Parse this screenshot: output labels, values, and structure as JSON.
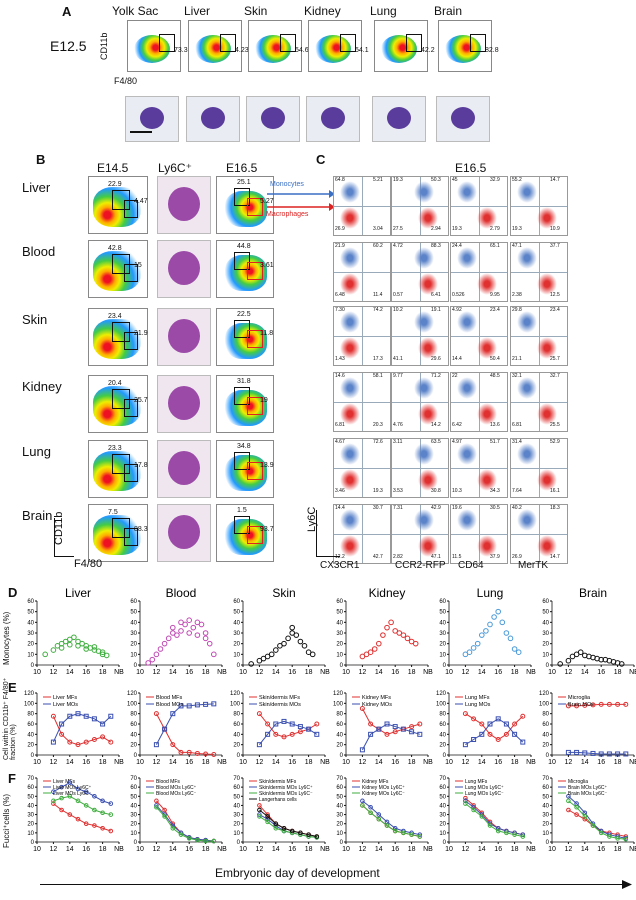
{
  "panelA": {
    "label": "A",
    "day": "E12.5",
    "tissues": [
      "Yolk Sac",
      "Liver",
      "Skin",
      "Kidney",
      "Lung",
      "Brain"
    ],
    "gate_values": [
      "73.3",
      "4.23",
      "54.6",
      "54.1",
      "42.2",
      "82.8"
    ],
    "y_axis": "CD11b",
    "x_axis": "F4/80"
  },
  "panelB": {
    "label": "B",
    "col_e145": "E14.5",
    "col_ly6c": "Ly6C⁺",
    "col_e165": "E16.5",
    "rows": [
      {
        "tissue": "Liver",
        "e145": [
          "22.9",
          "4.47"
        ],
        "e165": [
          "25.1",
          "5.27"
        ]
      },
      {
        "tissue": "Blood",
        "e145": [
          "42.8",
          "15"
        ],
        "e165": [
          "44.8",
          "3.61"
        ]
      },
      {
        "tissue": "Skin",
        "e145": [
          "23.4",
          "21.9"
        ],
        "e165": [
          "22.5",
          "11.8"
        ]
      },
      {
        "tissue": "Kidney",
        "e145": [
          "20.4",
          "25.7"
        ],
        "e165": [
          "31.8",
          "19"
        ]
      },
      {
        "tissue": "Lung",
        "e145": [
          "23.3",
          "17.8"
        ],
        "e165": [
          "34.8",
          "13.9"
        ]
      },
      {
        "tissue": "Brain",
        "e145": [
          "7.5",
          "88.3"
        ],
        "e165": [
          "1.5",
          "93.7"
        ]
      }
    ],
    "y_axis": "CD11b",
    "x_axis": "F4/80",
    "arrow_monocytes": "Monocytes",
    "arrow_macrophages": "Macrophages"
  },
  "panelC": {
    "label": "C",
    "day": "E16.5",
    "y_axis": "Ly6C",
    "columns": [
      "CX3CR1",
      "CCR2-RFP",
      "CD64",
      "MerTK"
    ],
    "quadrant_values": [
      [
        [
          "64.8",
          "5.21",
          "26.9",
          "3.04"
        ],
        [
          "19.3",
          "50.3",
          "27.5",
          "2.94"
        ],
        [
          "45",
          "32.9",
          "19.3",
          "2.79"
        ],
        [
          "55.2",
          "14.7",
          "19.3",
          "10.9"
        ]
      ],
      [
        [
          "21.9",
          "60.2",
          "6.48",
          "11.4"
        ],
        [
          "4.72",
          "88.3",
          "0.57",
          "6.41"
        ],
        [
          "24.4",
          "65.1",
          "0.526",
          "9.95"
        ],
        [
          "47.1",
          "37.7",
          "2.38",
          "12.5"
        ]
      ],
      [
        [
          "7.30",
          "74.2",
          "1.43",
          "17.3"
        ],
        [
          "10.2",
          "19.1",
          "41.1",
          "29.6"
        ],
        [
          "4.92",
          "23.4",
          "14.4",
          "50.4"
        ],
        [
          "29.8",
          "23.4",
          "21.1",
          "25.7"
        ]
      ],
      [
        [
          "14.6",
          "58.1",
          "6.81",
          "20.3"
        ],
        [
          "9.77",
          "71.2",
          "4.76",
          "14.2"
        ],
        [
          "22",
          "48.5",
          "6.42",
          "13.6"
        ],
        [
          "32.1",
          "32.7",
          "6.81",
          "25.5"
        ]
      ],
      [
        [
          "4.67",
          "72.6",
          "3.46",
          "19.3"
        ],
        [
          "3.11",
          "63.5",
          "3.53",
          "30.8"
        ],
        [
          "4.97",
          "51.7",
          "10.3",
          "34.3"
        ],
        [
          "31.4",
          "52.9",
          "7.64",
          "16.1"
        ]
      ],
      [
        [
          "14.4",
          "30.7",
          "12.2",
          "42.7"
        ],
        [
          "7.31",
          "42.9",
          "2.82",
          "47.1"
        ],
        [
          "19.6",
          "30.5",
          "11.5",
          "37.9"
        ],
        [
          "40.2",
          "18.3",
          "26.9",
          "14.7"
        ]
      ]
    ]
  },
  "panelD": {
    "label": "D",
    "ylabel": "Monocytes (%)",
    "ticks_y": [
      "0",
      "10",
      "20",
      "30",
      "40",
      "50",
      "60"
    ],
    "ticks_x": [
      "10",
      "12",
      "14",
      "16",
      "18",
      "NB"
    ],
    "titles": [
      "Liver",
      "Blood",
      "Skin",
      "Kidney",
      "Lung",
      "Brain"
    ]
  },
  "panelE": {
    "label": "E",
    "ylabel": "Cell within CD11b⁺ F4/80⁺ fraction (%)",
    "ticks_y": [
      "0",
      "20",
      "40",
      "60",
      "80",
      "100",
      "120"
    ],
    "legends": [
      [
        "Liver MFs",
        "Liver MOs"
      ],
      [
        "Blood MFs",
        "Blood MOs"
      ],
      [
        "Skin/dermis MFs",
        "Skin/dermis MOs"
      ],
      [
        "Kidney MFs",
        "Kidney MOs"
      ],
      [
        "Lung MFs",
        "Lung MOs"
      ],
      [
        "Microglia",
        "Brain MOs"
      ]
    ]
  },
  "panelF": {
    "label": "F",
    "ylabel": "Fucci⁺cells (%)",
    "ticks_y": [
      "0",
      "10",
      "20",
      "30",
      "40",
      "50",
      "60",
      "70"
    ],
    "legends": [
      [
        "Liver MFs",
        "Liver MOs Ly6C⁺",
        "Liver MOs Ly6C⁻"
      ],
      [
        "Blood MFs",
        "Blood MOs Ly6C⁺",
        "Blood MOs Ly6C⁻"
      ],
      [
        "Skin/dermis MFs",
        "Skin/dermis MOs Ly6C⁺",
        "Skin/dermis MOs Ly6C⁻",
        "Langerhans cells"
      ],
      [
        "Kidney MFs",
        "Kidney MOs Ly6C⁺",
        "Kidney MOs Ly6C⁻"
      ],
      [
        "Lung MFs",
        "Lung MOs Ly6C⁺",
        "Lung MOs Ly6C⁻"
      ],
      [
        "Microglia",
        "Brain MOs Ly6C⁺",
        "Brain MOs Ly6C⁻"
      ]
    ]
  },
  "footer": "Embryonic day of development",
  "chart_data": [
    {
      "type": "scatter",
      "panel": "D",
      "series": [
        {
          "name": "Liver",
          "x": [
            11,
            12,
            12.5,
            13,
            13,
            13.5,
            14,
            14,
            14.5,
            15,
            15,
            15.5,
            16,
            16,
            16.5,
            17,
            17,
            17.5,
            18,
            18,
            18.5
          ],
          "y": [
            10,
            14,
            18,
            20,
            16,
            22,
            24,
            19,
            26,
            22,
            18,
            20,
            18,
            15,
            16,
            14,
            17,
            13,
            12,
            10,
            9
          ]
        },
        {
          "name": "Blood",
          "x": [
            11,
            11.5,
            12,
            12.5,
            13,
            13.5,
            14,
            14,
            14.5,
            15,
            15,
            15.5,
            16,
            16,
            16.5,
            17,
            17,
            17.5,
            18,
            18,
            18.5,
            19
          ],
          "y": [
            2,
            5,
            10,
            15,
            20,
            25,
            30,
            35,
            28,
            40,
            32,
            38,
            42,
            30,
            35,
            40,
            28,
            38,
            30,
            25,
            20,
            10
          ]
        },
        {
          "name": "Skin",
          "x": [
            11,
            12,
            12.5,
            13,
            13.5,
            14,
            14.5,
            15,
            15.5,
            16,
            16,
            16.5,
            17,
            17.5,
            18,
            18.5
          ],
          "y": [
            1,
            4,
            6,
            8,
            10,
            14,
            18,
            20,
            25,
            35,
            30,
            28,
            22,
            18,
            12,
            10
          ]
        },
        {
          "name": "Kidney",
          "x": [
            12,
            12.5,
            13,
            13.5,
            14,
            14.5,
            15,
            15.5,
            16,
            16.5,
            17,
            17.5,
            18,
            18.5
          ],
          "y": [
            8,
            10,
            12,
            15,
            20,
            28,
            35,
            40,
            32,
            30,
            28,
            25,
            22,
            20
          ]
        },
        {
          "name": "Lung",
          "x": [
            12,
            12.5,
            13,
            13.5,
            14,
            14.5,
            15,
            15.5,
            16,
            16.5,
            17,
            17.5,
            18,
            18.5
          ],
          "y": [
            10,
            12,
            16,
            20,
            28,
            32,
            38,
            45,
            50,
            40,
            30,
            25,
            15,
            12
          ]
        },
        {
          "name": "Brain",
          "x": [
            11,
            12,
            12.5,
            13,
            13.5,
            14,
            14.5,
            15,
            15.5,
            16,
            16.5,
            17,
            17.5,
            18,
            18.5
          ],
          "y": [
            1,
            4,
            8,
            10,
            12,
            9,
            8,
            7,
            6,
            5,
            5,
            4,
            3,
            2,
            1
          ]
        }
      ]
    },
    {
      "type": "line",
      "panel": "E",
      "x": [
        12,
        13,
        14,
        15,
        16,
        17,
        18,
        19
      ],
      "series": [
        {
          "name": "Liver MFs",
          "values": [
            75,
            40,
            25,
            20,
            25,
            30,
            35,
            25
          ]
        },
        {
          "name": "Liver MOs",
          "values": [
            25,
            60,
            75,
            80,
            75,
            70,
            60,
            75
          ]
        },
        {
          "name": "Blood MFs",
          "values": [
            80,
            50,
            20,
            5,
            5,
            3,
            2,
            1
          ]
        },
        {
          "name": "Blood MOs",
          "values": [
            20,
            50,
            80,
            95,
            95,
            97,
            98,
            99
          ]
        },
        {
          "name": "Skin/dermis MFs",
          "values": [
            80,
            60,
            40,
            35,
            40,
            45,
            50,
            60
          ]
        },
        {
          "name": "Skin/dermis MOs",
          "values": [
            20,
            40,
            60,
            65,
            60,
            55,
            50,
            40
          ]
        },
        {
          "name": "Kidney MFs",
          "values": [
            90,
            60,
            50,
            40,
            45,
            50,
            55,
            60
          ]
        },
        {
          "name": "Kidney MOs",
          "values": [
            10,
            40,
            50,
            60,
            55,
            50,
            45,
            40
          ]
        },
        {
          "name": "Lung MFs",
          "values": [
            80,
            70,
            60,
            40,
            30,
            40,
            60,
            75
          ]
        },
        {
          "name": "Lung MOs",
          "values": [
            20,
            30,
            40,
            60,
            70,
            60,
            40,
            25
          ]
        },
        {
          "name": "Microglia",
          "values": [
            95,
            95,
            96,
            97,
            98,
            98,
            98,
            98
          ]
        },
        {
          "name": "Brain MOs",
          "values": [
            5,
            5,
            4,
            3,
            2,
            2,
            2,
            2
          ]
        }
      ]
    },
    {
      "type": "line",
      "panel": "F",
      "x": [
        12,
        13,
        14,
        15,
        16,
        17,
        18,
        19
      ],
      "series": [
        {
          "name": "Liver MFs",
          "values": [
            42,
            35,
            30,
            25,
            20,
            18,
            15,
            12
          ]
        },
        {
          "name": "Liver MOs Ly6C+",
          "values": [
            55,
            60,
            65,
            58,
            55,
            50,
            45,
            42
          ]
        },
        {
          "name": "Liver MOs Ly6C-",
          "values": [
            45,
            48,
            50,
            45,
            40,
            35,
            32,
            30
          ]
        },
        {
          "name": "Blood MFs",
          "values": [
            45,
            35,
            20,
            10,
            5,
            3,
            2,
            1
          ]
        },
        {
          "name": "Blood MOs Ly6C+",
          "values": [
            40,
            30,
            18,
            10,
            5,
            3,
            2,
            1
          ]
        },
        {
          "name": "Blood MOs Ly6C-",
          "values": [
            38,
            28,
            15,
            8,
            4,
            2,
            1,
            1
          ]
        },
        {
          "name": "Skin/dermis MFs",
          "values": [
            40,
            30,
            20,
            15,
            12,
            10,
            8,
            6
          ]
        },
        {
          "name": "Skin/dermis MOs Ly6C+",
          "values": [
            30,
            25,
            18,
            12,
            10,
            8,
            6,
            5
          ]
        },
        {
          "name": "Skin/dermis MOs Ly6C-",
          "values": [
            28,
            22,
            15,
            12,
            10,
            8,
            6,
            5
          ]
        },
        {
          "name": "Langerhans cells",
          "values": [
            35,
            28,
            20,
            15,
            12,
            10,
            8,
            6
          ]
        },
        {
          "name": "Kidney MFs",
          "values": [
            40,
            32,
            25,
            18,
            12,
            10,
            8,
            6
          ]
        },
        {
          "name": "Kidney MOs Ly6C+",
          "values": [
            45,
            38,
            30,
            22,
            15,
            12,
            10,
            8
          ]
        },
        {
          "name": "Kidney MOs Ly6C-",
          "values": [
            40,
            32,
            25,
            18,
            12,
            10,
            8,
            6
          ]
        },
        {
          "name": "Lung MFs",
          "values": [
            48,
            40,
            32,
            22,
            15,
            12,
            10,
            8
          ]
        },
        {
          "name": "Lung MOs Ly6C+",
          "values": [
            45,
            38,
            30,
            20,
            15,
            12,
            10,
            8
          ]
        },
        {
          "name": "Lung MOs Ly6C-",
          "values": [
            42,
            35,
            28,
            18,
            12,
            10,
            8,
            6
          ]
        },
        {
          "name": "Microglia",
          "values": [
            35,
            30,
            25,
            18,
            12,
            10,
            8,
            6
          ]
        },
        {
          "name": "Brain MOs Ly6C+",
          "values": [
            50,
            42,
            32,
            20,
            12,
            8,
            6,
            4
          ]
        },
        {
          "name": "Brain MOs Ly6C-",
          "values": [
            45,
            38,
            28,
            18,
            10,
            6,
            4,
            3
          ]
        }
      ]
    }
  ]
}
